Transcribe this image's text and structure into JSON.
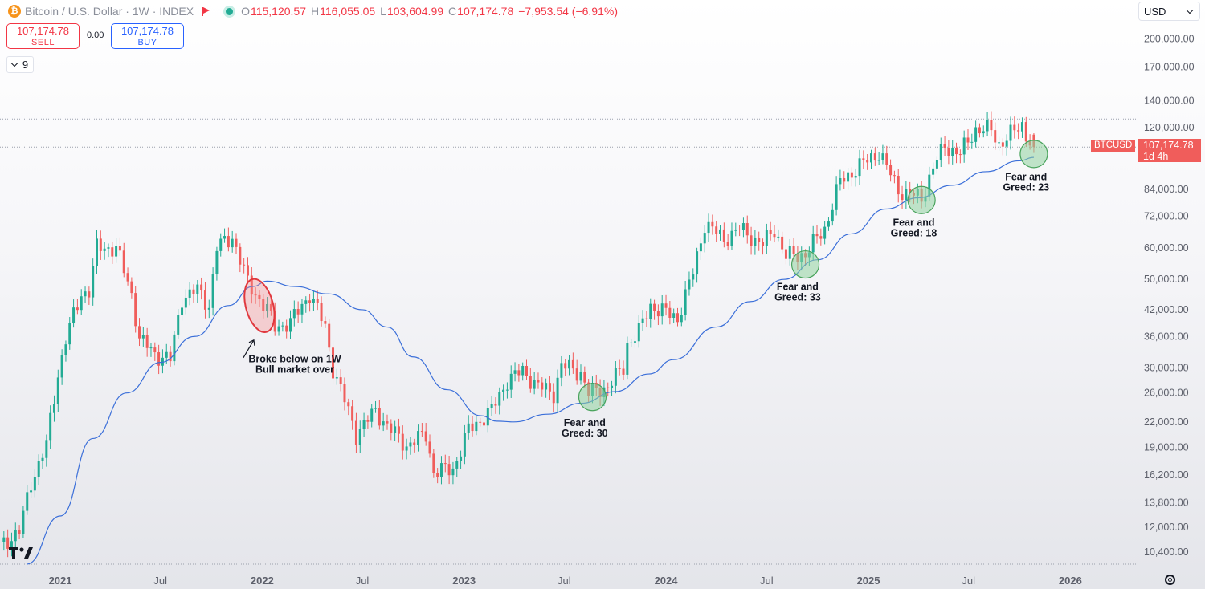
{
  "header": {
    "symbol": "Bitcoin / U.S. Dollar",
    "interval": "1W",
    "exchange": "INDEX",
    "ohlc": {
      "o_label": "O",
      "o": "115,120.57",
      "h_label": "H",
      "h": "116,055.05",
      "l_label": "L",
      "l": "103,604.99",
      "c_label": "C",
      "c": "107,174.78",
      "change": "−7,953.54 (−6.91%)"
    }
  },
  "trade": {
    "sell_price": "107,174.78",
    "sell_label": "SELL",
    "spread": "0.00",
    "buy_price": "107,174.78",
    "buy_label": "BUY"
  },
  "indicators_count": "9",
  "currency": "USD",
  "price_tag": {
    "symbol": "BTCUSD",
    "price": "107,174.78",
    "countdown": "1d 4h"
  },
  "colors": {
    "up": "#22ab94",
    "down": "#f05d5b",
    "ma": "#3b6fd9",
    "circle_green": "#8fd19e",
    "circle_red": "#f58a8a"
  },
  "chart_data": {
    "type": "candlestick",
    "scale": "log",
    "y_tick_labels": [
      "200,000.00",
      "170,000.00",
      "140,000.00",
      "120,000.00",
      "84,000.00",
      "72,000.00",
      "60,000.00",
      "50,000.00",
      "42,000.00",
      "36,000.00",
      "30,000.00",
      "26,000.00",
      "22,000.00",
      "19,000.00",
      "16,200.00",
      "13,800.00",
      "12,000.00",
      "10,400.00"
    ],
    "y_ticks": [
      200000,
      170000,
      140000,
      120000,
      84000,
      72000,
      60000,
      50000,
      42000,
      36000,
      30000,
      26000,
      22000,
      19000,
      16200,
      13800,
      12000,
      10400
    ],
    "x_tick_labels": [
      "2021",
      "Jul",
      "2022",
      "Jul",
      "2023",
      "Jul",
      "2024",
      "Jul",
      "2025",
      "Jul",
      "2026"
    ],
    "x_ticks": [
      "2021-01-01",
      "2021-07-01",
      "2022-01-01",
      "2022-07-01",
      "2023-01-01",
      "2023-07-01",
      "2024-01-01",
      "2024-07-01",
      "2025-01-01",
      "2025-07-01",
      "2026-01-01"
    ],
    "x_range": [
      "2020-09-14",
      "2026-05-01"
    ],
    "y_range": [
      9700,
      250000
    ],
    "current_price": 107174.78,
    "high_line": 126000,
    "price_anchors": [
      [
        "2020-09-14",
        10800
      ],
      [
        "2020-10-19",
        11700
      ],
      [
        "2020-11-09",
        15500
      ],
      [
        "2020-12-07",
        19300
      ],
      [
        "2020-12-28",
        29000
      ],
      [
        "2021-01-11",
        35500
      ],
      [
        "2021-02-08",
        46000
      ],
      [
        "2021-02-22",
        47000
      ],
      [
        "2021-03-08",
        60000
      ],
      [
        "2021-04-12",
        60000
      ],
      [
        "2021-05-10",
        46000
      ],
      [
        "2021-05-24",
        35500
      ],
      [
        "2021-06-21",
        32500
      ],
      [
        "2021-07-19",
        31500
      ],
      [
        "2021-08-09",
        45000
      ],
      [
        "2021-09-06",
        47000
      ],
      [
        "2021-09-27",
        43000
      ],
      [
        "2021-10-11",
        60000
      ],
      [
        "2021-11-08",
        64000
      ],
      [
        "2021-12-06",
        49000
      ],
      [
        "2022-01-10",
        42000
      ],
      [
        "2022-01-24",
        38000
      ],
      [
        "2022-02-21",
        39000
      ],
      [
        "2022-03-28",
        46000
      ],
      [
        "2022-04-25",
        38000
      ],
      [
        "2022-05-09",
        30000
      ],
      [
        "2022-06-13",
        22000
      ],
      [
        "2022-06-20",
        20500
      ],
      [
        "2022-07-25",
        23500
      ],
      [
        "2022-08-15",
        21500
      ],
      [
        "2022-09-19",
        19200
      ],
      [
        "2022-10-24",
        20500
      ],
      [
        "2022-11-07",
        16500
      ],
      [
        "2022-12-12",
        16800
      ],
      [
        "2023-01-09",
        21000
      ],
      [
        "2023-02-20",
        23500
      ],
      [
        "2023-03-20",
        28000
      ],
      [
        "2023-04-17",
        29500
      ],
      [
        "2023-05-15",
        27000
      ],
      [
        "2023-06-12",
        26000
      ],
      [
        "2023-06-26",
        30500
      ],
      [
        "2023-07-31",
        29200
      ],
      [
        "2023-08-14",
        26000
      ],
      [
        "2023-09-18",
        27000
      ],
      [
        "2023-10-16",
        30000
      ],
      [
        "2023-10-23",
        34500
      ],
      [
        "2023-11-13",
        37000
      ],
      [
        "2023-12-04",
        43000
      ],
      [
        "2024-01-22",
        40000
      ],
      [
        "2024-02-19",
        52000
      ],
      [
        "2024-03-11",
        69000
      ],
      [
        "2024-04-15",
        63000
      ],
      [
        "2024-05-13",
        67000
      ],
      [
        "2024-06-24",
        61000
      ],
      [
        "2024-07-15",
        67000
      ],
      [
        "2024-08-05",
        57000
      ],
      [
        "2024-09-09",
        58000
      ],
      [
        "2024-10-14",
        67000
      ],
      [
        "2024-11-11",
        88000
      ],
      [
        "2024-12-16",
        96000
      ],
      [
        "2025-01-20",
        104000
      ],
      [
        "2025-02-24",
        84000
      ],
      [
        "2025-03-10",
        82000
      ],
      [
        "2025-04-07",
        80000
      ],
      [
        "2025-04-28",
        95000
      ],
      [
        "2025-05-19",
        108000
      ],
      [
        "2025-06-16",
        103000
      ],
      [
        "2025-07-14",
        119000
      ],
      [
        "2025-08-11",
        118000
      ],
      [
        "2025-08-25",
        109000
      ],
      [
        "2025-09-15",
        115000
      ],
      [
        "2025-10-06",
        122000
      ],
      [
        "2025-10-13",
        115000
      ],
      [
        "2025-10-27",
        107000
      ]
    ],
    "last_candle": {
      "date": "2025-10-27",
      "open": 115120.57,
      "high": 116055.05,
      "low": 103604.99,
      "close": 107174.78
    },
    "moving_average": {
      "points": [
        [
          "2020-11-01",
          9700
        ],
        [
          "2021-01-01",
          12800
        ],
        [
          "2021-03-01",
          20000
        ],
        [
          "2021-05-01",
          26000
        ],
        [
          "2021-07-01",
          31000
        ],
        [
          "2021-09-01",
          36000
        ],
        [
          "2021-11-01",
          43000
        ],
        [
          "2021-12-15",
          48000
        ],
        [
          "2022-01-10",
          49500
        ],
        [
          "2022-03-01",
          48000
        ],
        [
          "2022-05-01",
          46000
        ],
        [
          "2022-07-01",
          42000
        ],
        [
          "2022-08-15",
          38000
        ],
        [
          "2022-10-01",
          32000
        ],
        [
          "2022-12-01",
          26500
        ],
        [
          "2023-02-01",
          22800
        ],
        [
          "2023-03-01",
          22100
        ],
        [
          "2023-04-01",
          22000
        ],
        [
          "2023-06-01",
          23000
        ],
        [
          "2023-08-01",
          24500
        ],
        [
          "2023-10-01",
          26200
        ],
        [
          "2023-12-01",
          29000
        ],
        [
          "2024-01-15",
          31500
        ],
        [
          "2024-04-01",
          38000
        ],
        [
          "2024-06-01",
          44000
        ],
        [
          "2024-08-01",
          50000
        ],
        [
          "2024-10-01",
          56000
        ],
        [
          "2024-12-01",
          65000
        ],
        [
          "2025-02-01",
          75000
        ],
        [
          "2025-04-01",
          80000
        ],
        [
          "2025-06-01",
          86000
        ],
        [
          "2025-08-01",
          93000
        ],
        [
          "2025-10-01",
          99000
        ],
        [
          "2025-10-27",
          101000
        ]
      ]
    },
    "annotations": [
      {
        "text1": "Broke below on 1W",
        "text2": "Bull market over",
        "date": "2021-12-27",
        "price": 43000,
        "color": "red",
        "text_date": "2022-03-01",
        "text_price": 31000
      },
      {
        "text1": "Fear and",
        "text2": "Greed: 30",
        "date": "2023-08-21",
        "price": 25400,
        "color": "green",
        "text_date": "2023-08-07",
        "text_price": 21500
      },
      {
        "text1": "Fear and",
        "text2": "Greed: 33",
        "date": "2024-09-09",
        "price": 54500,
        "color": "green",
        "text_date": "2024-08-26",
        "text_price": 47000
      },
      {
        "text1": "Fear and",
        "text2": "Greed: 18",
        "date": "2025-04-07",
        "price": 79000,
        "color": "green",
        "text_date": "2025-03-24",
        "text_price": 68000
      },
      {
        "text1": "Fear and",
        "text2": "Greed: 23",
        "date": "2025-10-27",
        "price": 103000,
        "color": "green",
        "text_date": "2025-10-13",
        "text_price": 88500
      }
    ]
  }
}
